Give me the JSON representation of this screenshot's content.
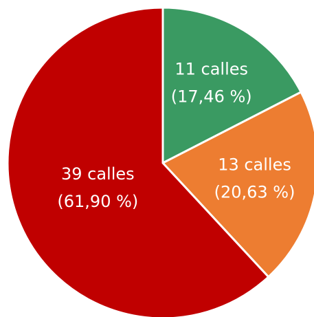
{
  "chart_data": {
    "type": "pie",
    "values": [
      11,
      13,
      39
    ],
    "value_labels": [
      "11 calles",
      "13 calles",
      "39 calles"
    ],
    "percent_labels": [
      "(17,46 %)",
      "(20,63 %)",
      "(61,90 %)"
    ],
    "colors": [
      "#3a9a62",
      "#ed7d31",
      "#c00000"
    ]
  }
}
